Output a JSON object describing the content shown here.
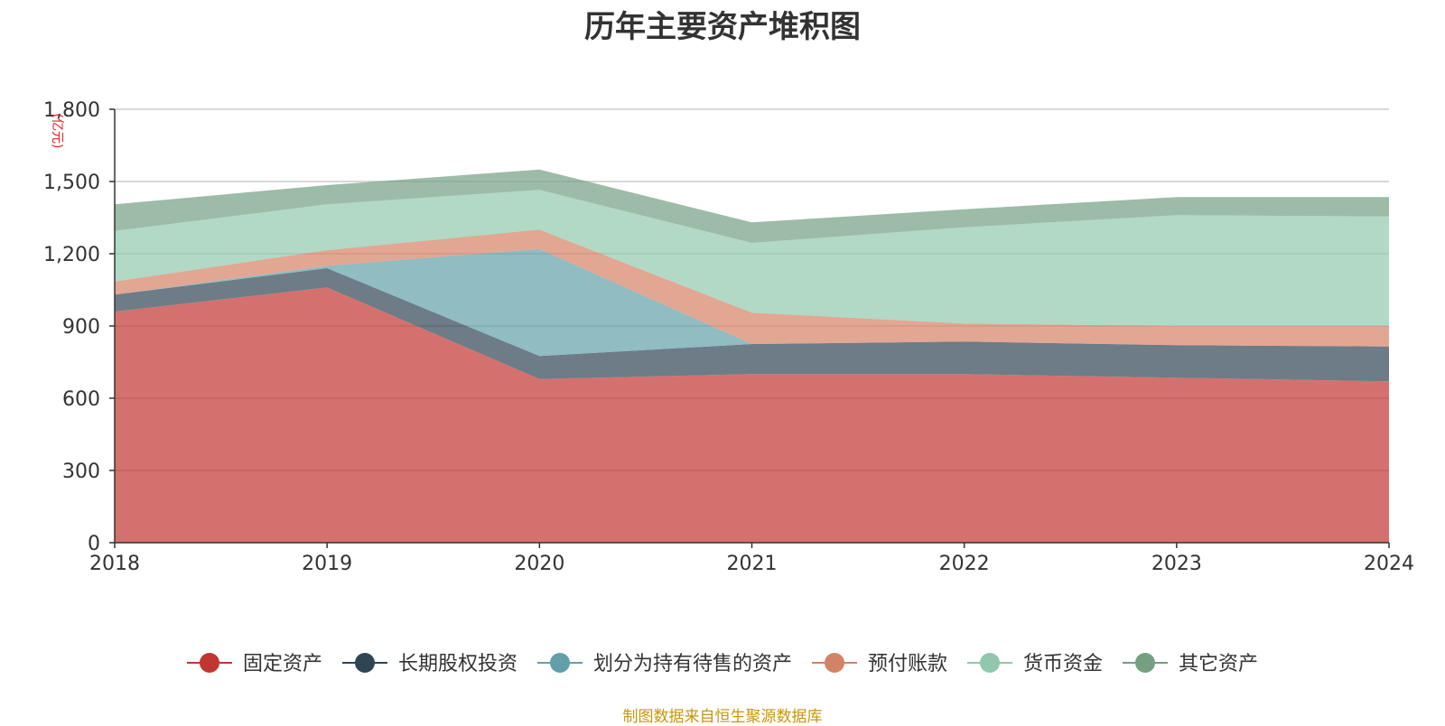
{
  "chart_data": {
    "type": "area",
    "stacked": true,
    "title": "历年主要资产堆积图",
    "unit_label": "(亿元)",
    "x": [
      "2018",
      "2019",
      "2020",
      "2021",
      "2022",
      "2023",
      "2024"
    ],
    "ylim": [
      0,
      1800
    ],
    "yticks": [
      0,
      300,
      600,
      900,
      1200,
      1500,
      1800
    ],
    "ytick_labels": [
      "0",
      "300",
      "600",
      "900",
      "1,200",
      "1,500",
      "1,800"
    ],
    "grid": true,
    "legend_position": "bottom",
    "series": [
      {
        "name": "固定资产",
        "color": "#c23531",
        "values": [
          960,
          1060,
          680,
          700,
          700,
          685,
          670
        ]
      },
      {
        "name": "长期股权投资",
        "color": "#2f4554",
        "values": [
          70,
          80,
          95,
          125,
          135,
          135,
          145
        ]
      },
      {
        "name": "划分为持有待售的资产",
        "color": "#61a0a8",
        "values": [
          0,
          10,
          445,
          0,
          0,
          0,
          0
        ]
      },
      {
        "name": "预付账款",
        "color": "#d48265",
        "values": [
          55,
          65,
          80,
          130,
          75,
          80,
          85
        ]
      },
      {
        "name": "货币资金",
        "color": "#91c7ae",
        "values": [
          210,
          190,
          165,
          290,
          400,
          460,
          455
        ]
      },
      {
        "name": "其它资产",
        "color": "#749f83",
        "values": [
          110,
          80,
          85,
          85,
          75,
          75,
          80
        ]
      }
    ]
  },
  "source_note": "制图数据来自恒生聚源数据库"
}
